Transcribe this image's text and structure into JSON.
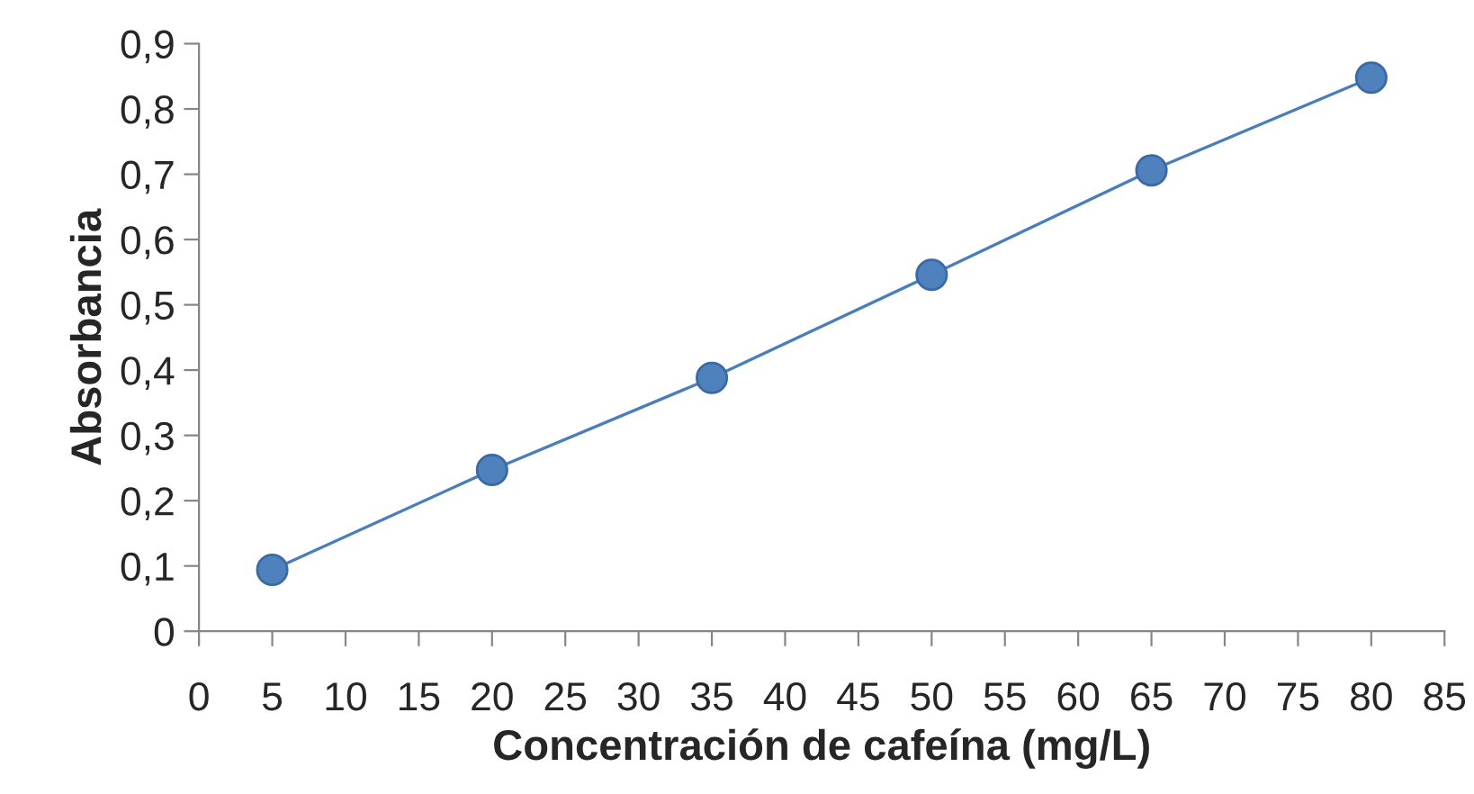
{
  "chart_data": {
    "type": "line",
    "xlabel": "Concentración de cafeína (mg/L)",
    "ylabel": "Absorbancia",
    "x": [
      5,
      20,
      35,
      50,
      65,
      80
    ],
    "series": [
      {
        "color": "#4a7ebb",
        "values": [
          0.094,
          0.247,
          0.388,
          0.546,
          0.706,
          0.848
        ]
      }
    ],
    "marker": "circle",
    "line_style": "solid",
    "grid": false,
    "legend": false,
    "xlim": [
      0,
      85
    ],
    "xticks": [
      0,
      5,
      10,
      15,
      20,
      25,
      30,
      35,
      40,
      45,
      50,
      55,
      60,
      65,
      70,
      75,
      80,
      85
    ],
    "ylim": [
      0,
      0.9
    ],
    "yticks": [
      {
        "value": 0,
        "label": "0"
      },
      {
        "value": 0.1,
        "label": "0,1"
      },
      {
        "value": 0.2,
        "label": "0,2"
      },
      {
        "value": 0.3,
        "label": "0,3"
      },
      {
        "value": 0.4,
        "label": "0,4"
      },
      {
        "value": 0.5,
        "label": "0,5"
      },
      {
        "value": 0.6,
        "label": "0,6"
      },
      {
        "value": 0.7,
        "label": "0,7"
      },
      {
        "value": 0.8,
        "label": "0,8"
      },
      {
        "value": 0.9,
        "label": "0,9"
      }
    ]
  }
}
